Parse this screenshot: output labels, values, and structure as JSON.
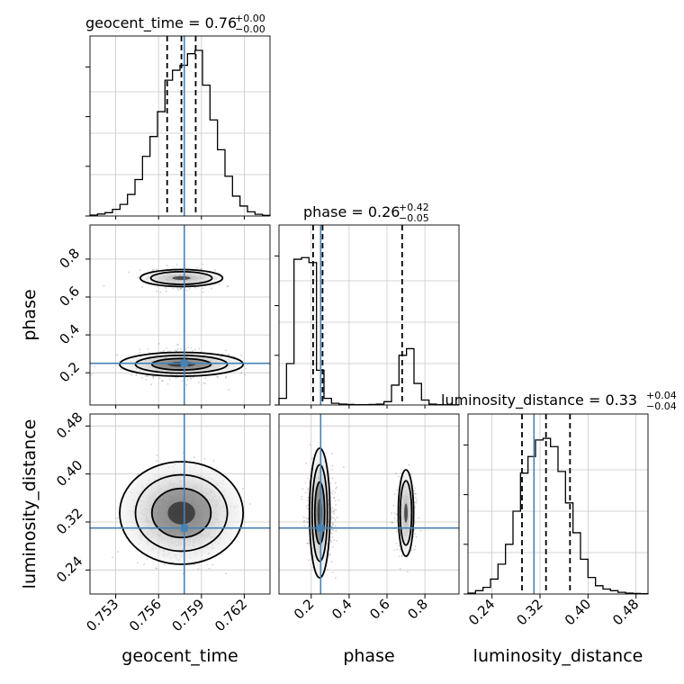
{
  "chart_data": {
    "type": "corner",
    "parameters": [
      {
        "name": "geocent_time",
        "label": "geocent_time",
        "median": 0.7576,
        "q16": 0.7566,
        "q84": 0.7586,
        "truth": 0.7578,
        "range": [
          0.7512,
          0.7638
        ],
        "ticks": [
          "0.753",
          "0.756",
          "0.759",
          "0.762"
        ],
        "tick_values": [
          0.753,
          0.756,
          0.759,
          0.762
        ]
      },
      {
        "name": "phase",
        "label": "phase",
        "median": 0.26,
        "q16": 0.21,
        "q84": 0.68,
        "truth": 0.25,
        "range": [
          0.03,
          0.98
        ],
        "ticks": [
          "0.2",
          "0.4",
          "0.6",
          "0.8"
        ],
        "tick_values": [
          0.2,
          0.4,
          0.6,
          0.8
        ]
      },
      {
        "name": "luminosity_distance",
        "label": "luminosity_distance",
        "median": 0.33,
        "q16": 0.29,
        "q84": 0.37,
        "truth": 0.31,
        "range": [
          0.2,
          0.5
        ],
        "ticks": [
          "0.24",
          "0.32",
          "0.40",
          "0.48"
        ],
        "tick_values": [
          0.24,
          0.32,
          0.4,
          0.48
        ]
      }
    ],
    "titles": [
      {
        "main": "geocent_time = 0.76",
        "sup": "+0.00",
        "sub": "−0.00"
      },
      {
        "main": "phase = 0.26",
        "sup": "+0.42",
        "sub": "−0.05"
      },
      {
        "main": "luminosity_distance = 0.33",
        "sup": "+0.04",
        "sub": "−0.04"
      }
    ],
    "histograms": {
      "geocent_time": [
        0.005,
        0.012,
        0.02,
        0.04,
        0.07,
        0.13,
        0.22,
        0.36,
        0.48,
        0.63,
        0.82,
        0.88,
        0.91,
        0.98,
        1.0,
        0.79,
        0.58,
        0.4,
        0.24,
        0.12,
        0.06,
        0.025,
        0.01,
        0.004
      ],
      "phase": [
        0.04,
        0.25,
        0.88,
        0.89,
        0.86,
        0.21,
        0.04,
        0.01,
        0.005,
        0.003,
        0.002,
        0.002,
        0.003,
        0.005,
        0.02,
        0.12,
        0.3,
        0.34,
        0.13,
        0.03,
        0.005,
        0.002,
        0.001,
        0.001
      ],
      "luminosity_distance": [
        0.005,
        0.02,
        0.04,
        0.09,
        0.18,
        0.3,
        0.5,
        0.73,
        0.83,
        0.93,
        0.94,
        0.89,
        0.74,
        0.55,
        0.37,
        0.21,
        0.1,
        0.05,
        0.03,
        0.02,
        0.01,
        0.005,
        0.003,
        0.002
      ]
    },
    "grid": true,
    "truth_color": "#4682b4",
    "quantile_line_style": "dashed"
  }
}
